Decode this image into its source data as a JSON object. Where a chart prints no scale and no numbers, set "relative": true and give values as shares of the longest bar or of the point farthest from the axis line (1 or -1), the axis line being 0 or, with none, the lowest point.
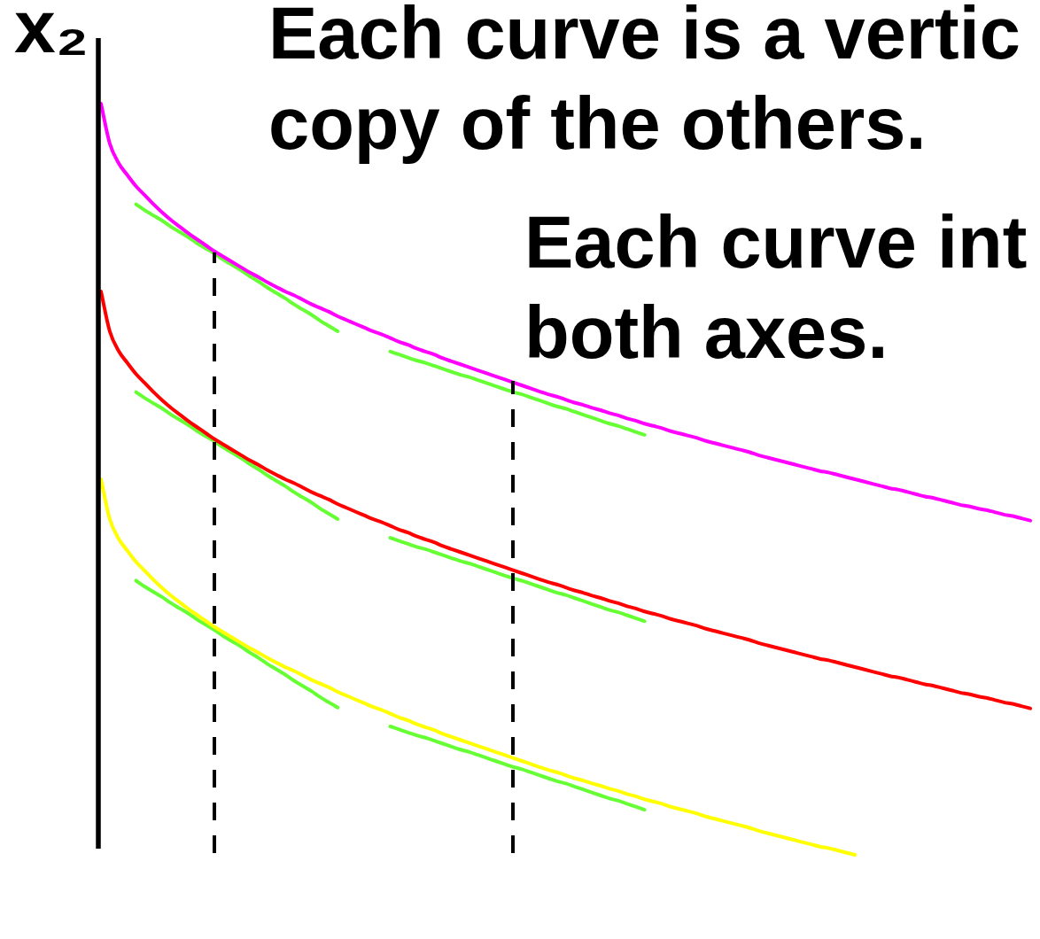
{
  "chart_data": {
    "type": "line",
    "relative": true,
    "marker": "none",
    "ylabel": "x₂",
    "annotations": [
      "Each curve is a vertic copy of the others.",
      "Each curve int both axes."
    ],
    "categories": [
      null,
      null,
      null,
      null,
      null,
      null,
      null,
      null,
      null,
      null,
      null,
      null,
      null,
      null,
      null,
      null,
      null,
      null,
      null,
      null,
      null,
      null,
      null,
      null,
      null,
      null,
      null,
      null,
      null,
      null,
      null,
      null,
      null,
      null,
      null,
      null,
      null,
      null,
      null,
      null,
      null,
      null,
      null,
      null,
      null,
      null,
      null,
      null,
      null,
      null,
      null,
      null,
      null,
      null,
      null,
      null,
      null,
      null,
      null,
      null,
      null,
      null,
      null,
      null,
      null,
      null,
      null,
      null,
      null,
      null,
      null,
      null,
      null,
      null,
      null,
      null,
      null,
      null,
      null,
      null,
      null,
      null,
      null,
      null,
      null,
      null,
      null,
      null,
      null,
      null,
      null,
      null,
      null,
      null,
      null,
      null,
      null,
      null,
      null,
      null,
      null,
      null,
      null,
      null,
      null,
      null,
      null
    ],
    "series": [
      {
        "color": "#ff00ff",
        "values": [
          1,
          0.947,
          0.921,
          0.905,
          0.89,
          0.878,
          0.866,
          0.855,
          0.845,
          0.836,
          0.827,
          0.819,
          0.811,
          0.803,
          0.796,
          0.789,
          0.782,
          0.775,
          0.769,
          0.762,
          0.756,
          0.75,
          0.745,
          0.739,
          0.733,
          0.728,
          0.723,
          0.717,
          0.712,
          0.707,
          0.702,
          0.697,
          0.693,
          0.688,
          0.683,
          0.679,
          0.674,
          0.67,
          0.666,
          0.661,
          0.657,
          0.653,
          0.649,
          0.645,
          0.641,
          0.637,
          0.633,
          0.629,
          0.625,
          0.621,
          0.617,
          0.613,
          0.61,
          0.606,
          0.602,
          0.599,
          0.595,
          0.592,
          0.588,
          0.585,
          0.581,
          0.578,
          0.574,
          0.571,
          0.568,
          0.564,
          0.561,
          0.558,
          0.555,
          0.551,
          0.548,
          0.545,
          0.542,
          0.539,
          0.536,
          0.532,
          0.529,
          0.526,
          0.523,
          0.52,
          0.517,
          0.514,
          0.511,
          0.509,
          0.506,
          0.503,
          0.5,
          0.497,
          0.494,
          0.491,
          0.488,
          0.486,
          0.483,
          0.48,
          0.477,
          0.475,
          0.472,
          0.469,
          0.466,
          0.464,
          0.461,
          0.459,
          0.456,
          0.453,
          0.451,
          0.448,
          0.445
        ]
      },
      {
        "color": "#ff0000",
        "values": [
          0.75,
          0.697,
          0.671,
          0.655,
          0.64,
          0.628,
          0.616,
          0.605,
          0.595,
          0.586,
          0.577,
          0.569,
          0.561,
          0.553,
          0.546,
          0.539,
          0.532,
          0.525,
          0.519,
          0.512,
          0.506,
          0.5,
          0.495,
          0.489,
          0.483,
          0.478,
          0.473,
          0.467,
          0.462,
          0.457,
          0.452,
          0.447,
          0.443,
          0.438,
          0.433,
          0.429,
          0.424,
          0.42,
          0.416,
          0.411,
          0.407,
          0.403,
          0.399,
          0.395,
          0.391,
          0.387,
          0.383,
          0.379,
          0.375,
          0.371,
          0.367,
          0.363,
          0.36,
          0.356,
          0.352,
          0.349,
          0.345,
          0.342,
          0.338,
          0.335,
          0.331,
          0.328,
          0.324,
          0.321,
          0.318,
          0.314,
          0.311,
          0.308,
          0.305,
          0.301,
          0.298,
          0.295,
          0.292,
          0.289,
          0.286,
          0.282,
          0.279,
          0.276,
          0.273,
          0.27,
          0.267,
          0.264,
          0.261,
          0.259,
          0.256,
          0.253,
          0.25,
          0.247,
          0.244,
          0.241,
          0.238,
          0.236,
          0.233,
          0.23,
          0.227,
          0.225,
          0.222,
          0.219,
          0.216,
          0.214,
          0.211,
          0.209,
          0.206,
          0.203,
          0.201,
          0.198,
          0.195
        ]
      },
      {
        "color": "#ffff00",
        "values": [
          0.5,
          0.447,
          0.421,
          0.405,
          0.39,
          0.378,
          0.366,
          0.355,
          0.345,
          0.336,
          0.327,
          0.319,
          0.311,
          0.303,
          0.296,
          0.289,
          0.282,
          0.275,
          0.269,
          0.262,
          0.256,
          0.25,
          0.245,
          0.239,
          0.233,
          0.228,
          0.223,
          0.217,
          0.212,
          0.207,
          0.202,
          0.197,
          0.193,
          0.188,
          0.183,
          0.179,
          0.174,
          0.17,
          0.166,
          0.161,
          0.157,
          0.153,
          0.149,
          0.145,
          0.141,
          0.137,
          0.133,
          0.129,
          0.125,
          0.121,
          0.117,
          0.113,
          0.11,
          0.106,
          0.102,
          0.099,
          0.095,
          0.092,
          0.088,
          0.085,
          0.081,
          0.078,
          0.074,
          0.071,
          0.068,
          0.064,
          0.061,
          0.058,
          0.055,
          0.051,
          0.048,
          0.045,
          0.042,
          0.039,
          0.036,
          0.032,
          0.029,
          0.026,
          0.023,
          0.02,
          0.017,
          0.014,
          0.011,
          0.009,
          0.006,
          0.003,
          0,
          null,
          null,
          null,
          null,
          null,
          null,
          null,
          null,
          null,
          null,
          null,
          null,
          null,
          null,
          null,
          null,
          null,
          null,
          null,
          null
        ]
      },
      {
        "color": "#66ff33",
        "values": [
          null,
          null,
          null,
          null,
          0.866,
          0.858,
          0.851,
          0.844,
          0.836,
          0.829,
          0.822,
          0.814,
          0.807,
          0.8,
          0.792,
          0.785,
          0.778,
          0.77,
          0.763,
          0.755,
          0.748,
          0.741,
          0.733,
          0.726,
          0.719,
          0.711,
          0.704,
          0.697,
          null,
          null,
          null,
          null,
          null,
          null,
          null,
          null,
          null,
          null,
          null,
          null,
          null,
          null,
          null,
          null,
          null,
          null,
          null,
          null,
          null,
          null,
          null,
          null,
          null,
          null,
          null,
          null,
          null,
          null,
          null,
          null,
          null,
          null,
          null,
          null,
          null,
          null,
          null,
          null,
          null,
          null,
          null,
          null,
          null,
          null,
          null,
          null,
          null,
          null,
          null,
          null,
          null,
          null,
          null,
          null,
          null,
          null,
          null,
          null,
          null,
          null,
          null,
          null,
          null,
          null,
          null,
          null,
          null,
          null,
          null,
          null,
          null,
          null,
          null,
          null,
          null,
          null,
          null
        ]
      },
      {
        "color": "#66ff33",
        "values": [
          null,
          null,
          null,
          null,
          null,
          null,
          null,
          null,
          null,
          null,
          null,
          null,
          null,
          null,
          null,
          null,
          null,
          null,
          null,
          null,
          null,
          null,
          null,
          null,
          null,
          null,
          null,
          null,
          null,
          null,
          null,
          null,
          null,
          0.67,
          0.666,
          0.662,
          0.658,
          0.655,
          0.651,
          0.647,
          0.643,
          0.639,
          0.636,
          0.632,
          0.628,
          0.624,
          0.62,
          0.616,
          0.613,
          0.609,
          0.605,
          0.601,
          0.597,
          0.594,
          0.59,
          0.586,
          0.582,
          0.578,
          0.574,
          0.571,
          0.567,
          0.563,
          0.559,
          null,
          null,
          null,
          null,
          null,
          null,
          null,
          null,
          null,
          null,
          null,
          null,
          null,
          null,
          null,
          null,
          null,
          null,
          null,
          null,
          null,
          null,
          null,
          null,
          null,
          null,
          null,
          null,
          null,
          null,
          null,
          null,
          null,
          null,
          null,
          null,
          null,
          null,
          null,
          null,
          null,
          null,
          null,
          null
        ]
      },
      {
        "color": "#66ff33",
        "values": [
          null,
          null,
          null,
          null,
          0.616,
          0.608,
          0.601,
          0.594,
          0.586,
          0.579,
          0.572,
          0.564,
          0.557,
          0.55,
          0.542,
          0.535,
          0.528,
          0.52,
          0.513,
          0.505,
          0.498,
          0.491,
          0.483,
          0.476,
          0.469,
          0.461,
          0.454,
          0.447,
          null,
          null,
          null,
          null,
          null,
          null,
          null,
          null,
          null,
          null,
          null,
          null,
          null,
          null,
          null,
          null,
          null,
          null,
          null,
          null,
          null,
          null,
          null,
          null,
          null,
          null,
          null,
          null,
          null,
          null,
          null,
          null,
          null,
          null,
          null,
          null,
          null,
          null,
          null,
          null,
          null,
          null,
          null,
          null,
          null,
          null,
          null,
          null,
          null,
          null,
          null,
          null,
          null,
          null,
          null,
          null,
          null,
          null,
          null,
          null,
          null,
          null,
          null,
          null,
          null,
          null,
          null,
          null,
          null,
          null,
          null,
          null,
          null,
          null,
          null,
          null,
          null,
          null,
          null
        ]
      },
      {
        "color": "#66ff33",
        "values": [
          null,
          null,
          null,
          null,
          null,
          null,
          null,
          null,
          null,
          null,
          null,
          null,
          null,
          null,
          null,
          null,
          null,
          null,
          null,
          null,
          null,
          null,
          null,
          null,
          null,
          null,
          null,
          null,
          null,
          null,
          null,
          null,
          null,
          0.422,
          0.418,
          0.414,
          0.41,
          0.407,
          0.403,
          0.399,
          0.395,
          0.391,
          0.388,
          0.384,
          0.38,
          0.376,
          0.372,
          0.368,
          0.365,
          0.361,
          0.357,
          0.353,
          0.349,
          0.346,
          0.342,
          0.338,
          0.334,
          0.33,
          0.326,
          0.323,
          0.319,
          0.315,
          0.311,
          null,
          null,
          null,
          null,
          null,
          null,
          null,
          null,
          null,
          null,
          null,
          null,
          null,
          null,
          null,
          null,
          null,
          null,
          null,
          null,
          null,
          null,
          null,
          null,
          null,
          null,
          null,
          null,
          null,
          null,
          null,
          null,
          null,
          null,
          null,
          null,
          null,
          null,
          null,
          null,
          null,
          null,
          null,
          null
        ]
      },
      {
        "color": "#66ff33",
        "values": [
          null,
          null,
          null,
          null,
          0.365,
          0.357,
          0.35,
          0.343,
          0.335,
          0.328,
          0.321,
          0.313,
          0.306,
          0.299,
          0.291,
          0.284,
          0.277,
          0.269,
          0.262,
          0.254,
          0.247,
          0.24,
          0.232,
          0.225,
          0.218,
          0.21,
          0.203,
          0.196,
          null,
          null,
          null,
          null,
          null,
          null,
          null,
          null,
          null,
          null,
          null,
          null,
          null,
          null,
          null,
          null,
          null,
          null,
          null,
          null,
          null,
          null,
          null,
          null,
          null,
          null,
          null,
          null,
          null,
          null,
          null,
          null,
          null,
          null,
          null,
          null,
          null,
          null,
          null,
          null,
          null,
          null,
          null,
          null,
          null,
          null,
          null,
          null,
          null,
          null,
          null,
          null,
          null,
          null,
          null,
          null,
          null,
          null,
          null,
          null,
          null,
          null,
          null,
          null,
          null,
          null,
          null,
          null,
          null,
          null,
          null,
          null,
          null,
          null,
          null,
          null,
          null,
          null,
          null
        ]
      },
      {
        "color": "#66ff33",
        "values": [
          null,
          null,
          null,
          null,
          null,
          null,
          null,
          null,
          null,
          null,
          null,
          null,
          null,
          null,
          null,
          null,
          null,
          null,
          null,
          null,
          null,
          null,
          null,
          null,
          null,
          null,
          null,
          null,
          null,
          null,
          null,
          null,
          null,
          0.171,
          0.167,
          0.163,
          0.159,
          0.156,
          0.152,
          0.148,
          0.144,
          0.14,
          0.137,
          0.133,
          0.129,
          0.125,
          0.121,
          0.117,
          0.114,
          0.11,
          0.106,
          0.102,
          0.098,
          0.095,
          0.091,
          0.087,
          0.083,
          0.079,
          0.075,
          0.072,
          0.068,
          0.064,
          0.06,
          null,
          null,
          null,
          null,
          null,
          null,
          null,
          null,
          null,
          null,
          null,
          null,
          null,
          null,
          null,
          null,
          null,
          null,
          null,
          null,
          null,
          null,
          null,
          null,
          null,
          null,
          null,
          null,
          null,
          null,
          null,
          null,
          null,
          null,
          null,
          null,
          null,
          null,
          null,
          null,
          null,
          null,
          null,
          null
        ]
      }
    ]
  }
}
